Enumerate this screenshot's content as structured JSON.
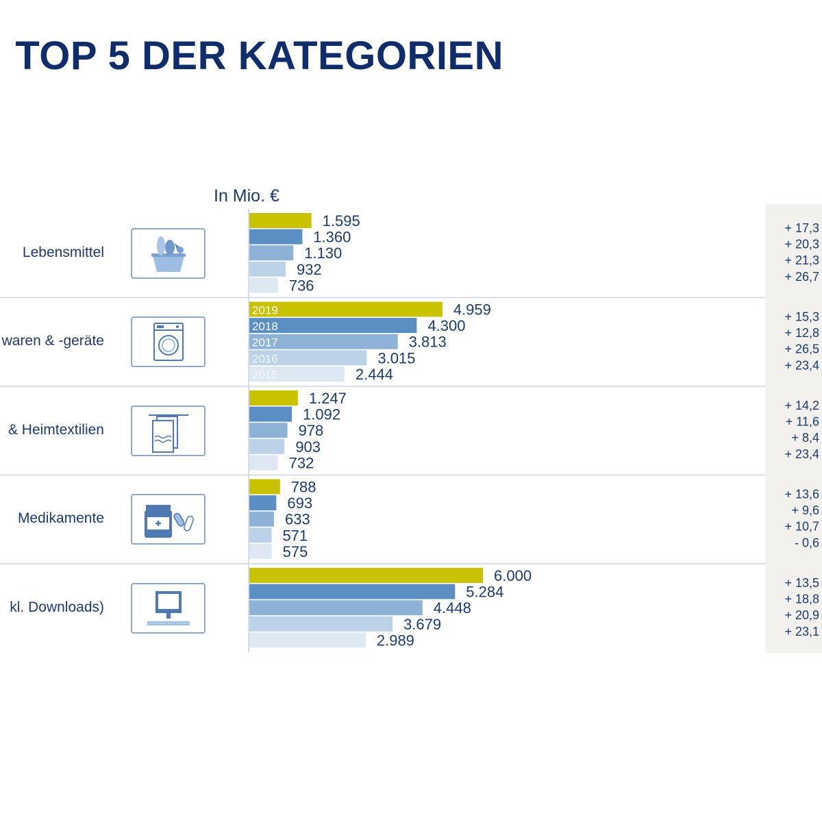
{
  "title": ": TOP 5 DER KATEGORIEN",
  "chart_data": {
    "type": "bar",
    "orientation": "horizontal",
    "unit": "In Mio. €",
    "years": [
      "2019",
      "2018",
      "2017",
      "2016",
      "2015"
    ],
    "categories": [
      {
        "label": "Lebensmittel",
        "icon": "grocery-basket-icon",
        "values": [
          1595,
          1360,
          1130,
          932,
          736
        ],
        "value_labels": [
          "1.595",
          "1.360",
          "1.130",
          "932",
          "736"
        ],
        "growth": [
          "+ 17,3",
          "+ 20,3",
          "+ 21,3",
          "+ 26,7"
        ]
      },
      {
        "label": "waren & -geräte",
        "icon": "washing-machine-icon",
        "values": [
          4959,
          4300,
          3813,
          3015,
          2444
        ],
        "value_labels": [
          "4.959",
          "4.300",
          "3.813",
          "3.015",
          "2.444"
        ],
        "growth": [
          "+ 15,3",
          "+ 12,8",
          "+ 26,5",
          "+ 23,4"
        ]
      },
      {
        "label": "& Heimtextilien",
        "icon": "towel-rack-icon",
        "values": [
          1247,
          1092,
          978,
          903,
          732
        ],
        "value_labels": [
          "1.247",
          "1.092",
          "978",
          "903",
          "732"
        ],
        "growth": [
          "+ 14,2",
          "+ 11,6",
          "+ 8,4",
          "+ 23,4"
        ]
      },
      {
        "label": "Medikamente",
        "icon": "medicine-jar-icon",
        "values": [
          788,
          693,
          633,
          571,
          575
        ],
        "value_labels": [
          "788",
          "693",
          "633",
          "571",
          "575"
        ],
        "growth": [
          "+ 13,6",
          "+ 9,6",
          "+ 10,7",
          "- 0,6"
        ]
      },
      {
        "label": "kl. Downloads)",
        "icon": "computer-icon",
        "values": [
          6000,
          5284,
          4448,
          3679,
          2989
        ],
        "value_labels": [
          "6.000",
          "5.284",
          "4.448",
          "3.679",
          "2.989"
        ],
        "growth": [
          "+ 13,5",
          "+ 18,8",
          "+ 20,9",
          "+ 23,1"
        ]
      }
    ],
    "colors": [
      "#c8c200",
      "#5b8ec2",
      "#8db2d6",
      "#bcd2e8",
      "#dde8f3"
    ],
    "xlim": [
      0,
      6000
    ]
  }
}
